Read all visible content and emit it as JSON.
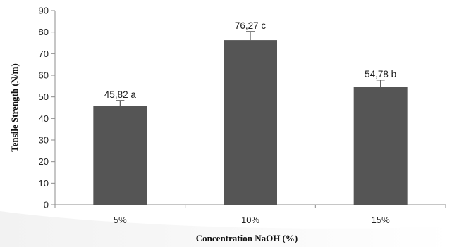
{
  "chart_data": {
    "type": "bar",
    "title": "",
    "xlabel": "Concentration NaOH (%)",
    "ylabel": "Tensile Strength (N/m)",
    "categories": [
      "5%",
      "10%",
      "15%"
    ],
    "values": [
      45.82,
      76.27,
      54.78
    ],
    "error_bars": [
      2.5,
      4.0,
      3.0
    ],
    "data_labels": [
      "45,82 a",
      "76,27 c",
      "54,78 b"
    ],
    "ylim": [
      0,
      90
    ],
    "yticks": [
      0,
      10,
      20,
      30,
      40,
      50,
      60,
      70,
      80,
      90
    ],
    "grid": false,
    "legend": "none",
    "bar_color": "#555555",
    "axis_color": "#8c8c8c"
  }
}
